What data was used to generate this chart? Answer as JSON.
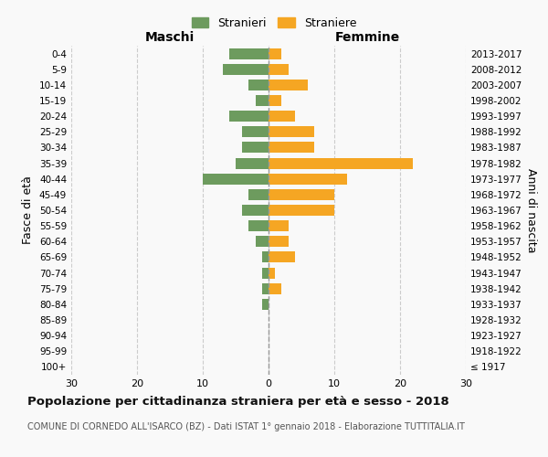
{
  "age_groups": [
    "100+",
    "95-99",
    "90-94",
    "85-89",
    "80-84",
    "75-79",
    "70-74",
    "65-69",
    "60-64",
    "55-59",
    "50-54",
    "45-49",
    "40-44",
    "35-39",
    "30-34",
    "25-29",
    "20-24",
    "15-19",
    "10-14",
    "5-9",
    "0-4"
  ],
  "birth_years": [
    "≤ 1917",
    "1918-1922",
    "1923-1927",
    "1928-1932",
    "1933-1937",
    "1938-1942",
    "1943-1947",
    "1948-1952",
    "1953-1957",
    "1958-1962",
    "1963-1967",
    "1968-1972",
    "1973-1977",
    "1978-1982",
    "1983-1987",
    "1988-1992",
    "1993-1997",
    "1998-2002",
    "2003-2007",
    "2008-2012",
    "2013-2017"
  ],
  "males": [
    0,
    0,
    0,
    0,
    1,
    1,
    1,
    1,
    2,
    3,
    4,
    3,
    10,
    5,
    4,
    4,
    6,
    2,
    3,
    7,
    6
  ],
  "females": [
    0,
    0,
    0,
    0,
    0,
    2,
    1,
    4,
    3,
    3,
    10,
    10,
    12,
    22,
    7,
    7,
    4,
    2,
    6,
    3,
    2
  ],
  "male_color": "#6d9b5e",
  "female_color": "#f5a623",
  "title": "Popolazione per cittadinanza straniera per età e sesso - 2018",
  "subtitle": "COMUNE DI CORNEDO ALL'ISARCO (BZ) - Dati ISTAT 1° gennaio 2018 - Elaborazione TUTTITALIA.IT",
  "legend_male": "Stranieri",
  "legend_female": "Straniere",
  "ylabel_left": "Fasce di età",
  "ylabel_right": "Anni di nascita",
  "xlabel_left": "Maschi",
  "xlabel_right": "Femmine",
  "xlim": 30,
  "background_color": "#f9f9f9",
  "grid_color": "#cccccc"
}
